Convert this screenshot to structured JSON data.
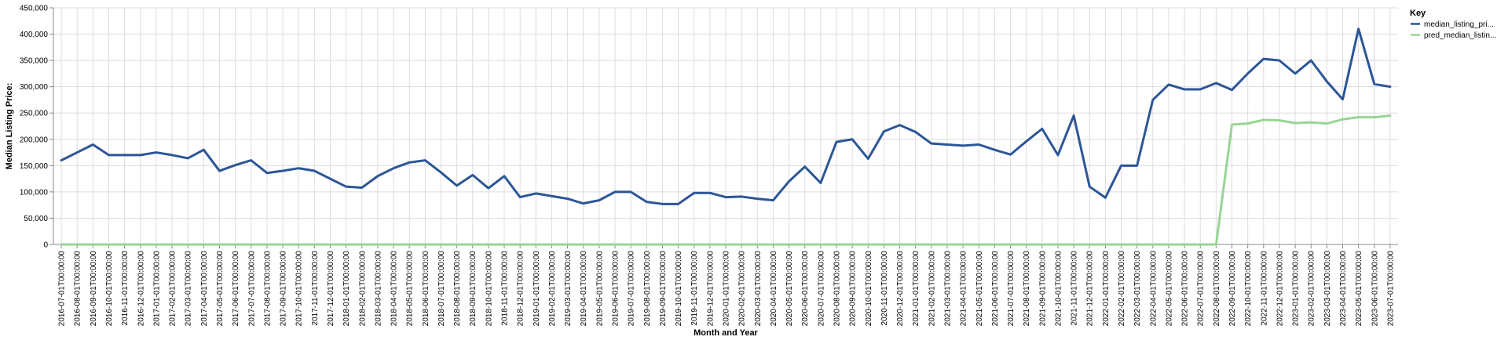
{
  "chart_data": {
    "type": "line",
    "xlabel": "Month and Year",
    "ylabel": "Median Listing Price:",
    "ylim": [
      0,
      450000
    ],
    "yticks": [
      "0",
      "50,000",
      "100,000",
      "150,000",
      "200,000",
      "250,000",
      "300,000",
      "350,000",
      "400,000",
      "450,000"
    ],
    "grid": true,
    "legend_position": "top-right",
    "legend_title": "Key",
    "x": [
      "2016-07-01T00:00:00",
      "2016-08-01T00:00:00",
      "2016-09-01T00:00:00",
      "2016-10-01T00:00:00",
      "2016-11-01T00:00:00",
      "2016-12-01T00:00:00",
      "2017-01-01T00:00:00",
      "2017-02-01T00:00:00",
      "2017-03-01T00:00:00",
      "2017-04-01T00:00:00",
      "2017-05-01T00:00:00",
      "2017-06-01T00:00:00",
      "2017-07-01T00:00:00",
      "2017-08-01T00:00:00",
      "2017-09-01T00:00:00",
      "2017-10-01T00:00:00",
      "2017-11-01T00:00:00",
      "2017-12-01T00:00:00",
      "2018-01-01T00:00:00",
      "2018-02-01T00:00:00",
      "2018-03-01T00:00:00",
      "2018-04-01T00:00:00",
      "2018-05-01T00:00:00",
      "2018-06-01T00:00:00",
      "2018-07-01T00:00:00",
      "2018-08-01T00:00:00",
      "2018-09-01T00:00:00",
      "2018-10-01T00:00:00",
      "2018-11-01T00:00:00",
      "2018-12-01T00:00:00",
      "2019-01-01T00:00:00",
      "2019-02-01T00:00:00",
      "2019-03-01T00:00:00",
      "2019-04-01T00:00:00",
      "2019-05-01T00:00:00",
      "2019-06-01T00:00:00",
      "2019-07-01T00:00:00",
      "2019-08-01T00:00:00",
      "2019-09-01T00:00:00",
      "2019-10-01T00:00:00",
      "2019-11-01T00:00:00",
      "2019-12-01T00:00:00",
      "2020-01-01T00:00:00",
      "2020-02-01T00:00:00",
      "2020-03-01T00:00:00",
      "2020-04-01T00:00:00",
      "2020-05-01T00:00:00",
      "2020-06-01T00:00:00",
      "2020-07-01T00:00:00",
      "2020-08-01T00:00:00",
      "2020-09-01T00:00:00",
      "2020-10-01T00:00:00",
      "2020-11-01T00:00:00",
      "2020-12-01T00:00:00",
      "2021-01-01T00:00:00",
      "2021-02-01T00:00:00",
      "2021-03-01T00:00:00",
      "2021-04-01T00:00:00",
      "2021-05-01T00:00:00",
      "2021-06-01T00:00:00",
      "2021-07-01T00:00:00",
      "2021-08-01T00:00:00",
      "2021-09-01T00:00:00",
      "2021-10-01T00:00:00",
      "2021-11-01T00:00:00",
      "2021-12-01T00:00:00",
      "2022-01-01T00:00:00",
      "2022-02-01T00:00:00",
      "2022-03-01T00:00:00",
      "2022-04-01T00:00:00",
      "2022-05-01T00:00:00",
      "2022-06-01T00:00:00",
      "2022-07-01T00:00:00",
      "2022-08-01T00:00:00",
      "2022-09-01T00:00:00",
      "2022-10-01T00:00:00",
      "2022-11-01T00:00:00",
      "2022-12-01T00:00:00",
      "2023-01-01T00:00:00",
      "2023-02-01T00:00:00",
      "2023-03-01T00:00:00",
      "2023-04-01T00:00:00",
      "2023-05-01T00:00:00",
      "2023-06-01T00:00:00",
      "2023-07-01T00:00:00"
    ],
    "series": [
      {
        "name": "median_listing_pri...",
        "color": "#2c5697",
        "values": [
          160000,
          175000,
          190000,
          170000,
          170000,
          170000,
          175000,
          170000,
          164000,
          180000,
          140000,
          151000,
          160000,
          136000,
          140000,
          145000,
          140000,
          125000,
          110000,
          108000,
          130000,
          145000,
          156000,
          160000,
          137000,
          112000,
          132000,
          107000,
          130000,
          90000,
          97000,
          92000,
          87000,
          78000,
          84000,
          100000,
          100000,
          81000,
          77000,
          77000,
          98000,
          98000,
          90000,
          91000,
          87000,
          84000,
          120000,
          148000,
          117000,
          195000,
          200000,
          163000,
          215000,
          227000,
          214000,
          192000,
          190000,
          188000,
          190000,
          180000,
          171000,
          196000,
          220000,
          170000,
          245000,
          110000,
          89000,
          150000,
          150000,
          275000,
          304000,
          295000,
          295000,
          307000,
          294000,
          325000,
          353000,
          350000,
          325000,
          350000,
          310000,
          276000,
          410000,
          305000,
          300000
        ]
      },
      {
        "name": "pred_median_listin...",
        "color": "#98d594",
        "values": [
          0,
          0,
          0,
          0,
          0,
          0,
          0,
          0,
          0,
          0,
          0,
          0,
          0,
          0,
          0,
          0,
          0,
          0,
          0,
          0,
          0,
          0,
          0,
          0,
          0,
          0,
          0,
          0,
          0,
          0,
          0,
          0,
          0,
          0,
          0,
          0,
          0,
          0,
          0,
          0,
          0,
          0,
          0,
          0,
          0,
          0,
          0,
          0,
          0,
          0,
          0,
          0,
          0,
          0,
          0,
          0,
          0,
          0,
          0,
          0,
          0,
          0,
          0,
          0,
          0,
          0,
          0,
          0,
          0,
          0,
          0,
          0,
          0,
          0,
          228000,
          230000,
          237000,
          236000,
          231000,
          232000,
          230000,
          238000,
          242000,
          242000,
          245000
        ]
      }
    ]
  }
}
